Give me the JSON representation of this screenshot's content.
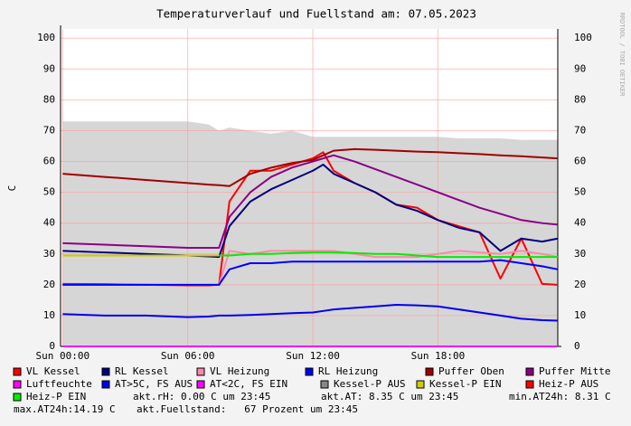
{
  "chart_data": {
    "type": "line",
    "title": "Temperaturverlauf und Fuellstand am: 07.05.2023",
    "y_label": "C",
    "watermark": "RRDTOOL / TOBI OETIKER",
    "x": [
      0,
      2,
      4,
      6,
      7,
      7.5,
      8,
      9,
      10,
      11,
      12,
      12.5,
      13,
      14,
      15,
      16,
      17,
      18,
      19,
      20,
      21,
      22,
      23,
      23.75
    ],
    "xlim": [
      -0.1,
      23.75
    ],
    "xticks": [
      {
        "value": 0,
        "label": "Sun 00:00"
      },
      {
        "value": 6,
        "label": "Sun 06:00"
      },
      {
        "value": 12,
        "label": "Sun 12:00"
      },
      {
        "value": 18,
        "label": "Sun 18:00"
      }
    ],
    "ylim": [
      0,
      103
    ],
    "yticks": [
      0,
      10,
      20,
      30,
      40,
      50,
      60,
      70,
      80,
      90,
      100
    ],
    "grid": true,
    "area": {
      "color": "#d6d6d6",
      "values": [
        73,
        73,
        73,
        73,
        72,
        70,
        71,
        70,
        69,
        70,
        68,
        68,
        68,
        68,
        68,
        68,
        68,
        68,
        67.5,
        67.5,
        67.5,
        67,
        67,
        67
      ]
    },
    "series": [
      {
        "name": "VL Kessel",
        "color": "#ff0000",
        "values": [
          20.3,
          20.2,
          20,
          19.8,
          19.8,
          20,
          47,
          57,
          57,
          59,
          61,
          63,
          57,
          53,
          50,
          46,
          45,
          41,
          39,
          37,
          22,
          35,
          20.3,
          20
        ]
      },
      {
        "name": "RL Kessel",
        "color": "#000080",
        "values": [
          31,
          30.5,
          30,
          29.5,
          29.2,
          29,
          39,
          47,
          51,
          54,
          57,
          59,
          56,
          53,
          50,
          46,
          44,
          41,
          38.5,
          37,
          31,
          35,
          34,
          35
        ]
      },
      {
        "name": "VL Heizung",
        "color": "#ff88aa",
        "values": [
          20,
          20,
          20,
          20,
          20,
          20,
          31,
          30,
          31,
          31,
          31,
          31,
          31,
          30,
          29,
          29,
          29,
          30,
          31,
          30.5,
          30,
          31,
          30,
          29
        ]
      },
      {
        "name": "RL Heizung",
        "color": "#0000ff",
        "values": [
          20,
          20,
          20,
          20,
          20,
          20,
          25,
          27,
          27,
          27.5,
          27.5,
          27.5,
          27.5,
          27.5,
          27.5,
          27.5,
          27.5,
          27.5,
          27.5,
          27.5,
          28,
          27,
          26,
          25
        ]
      },
      {
        "name": "Puffer Oben",
        "color": "#a00000",
        "values": [
          56,
          55,
          54,
          53,
          52.5,
          52.3,
          52,
          56,
          58,
          59.5,
          60.5,
          62,
          63.5,
          64,
          63.8,
          63.5,
          63.2,
          63,
          62.7,
          62.4,
          62,
          61.7,
          61.3,
          61
        ]
      },
      {
        "name": "Puffer Mitte",
        "color": "#880088",
        "values": [
          33.5,
          33,
          32.5,
          32,
          32,
          32,
          42,
          50,
          55,
          58,
          60,
          61,
          62,
          60,
          57.5,
          55,
          52.5,
          50,
          47.5,
          45,
          43,
          41,
          40,
          39.5
        ]
      },
      {
        "name": "Luftfeuchte",
        "color": "#ff00ff",
        "values": [
          0,
          0,
          0,
          0,
          0,
          0,
          0,
          0,
          0,
          0,
          0,
          0,
          0,
          0,
          0,
          0,
          0,
          0,
          0,
          0,
          0,
          0,
          0,
          0
        ]
      },
      {
        "name": "AT>5C, FS AUS",
        "color": "#0000ee",
        "values": [
          10.5,
          10,
          10,
          9.5,
          9.7,
          10,
          10,
          10.2,
          10.5,
          10.8,
          11,
          11.5,
          12,
          12.5,
          13,
          13.5,
          13.3,
          13,
          12,
          11,
          10,
          9,
          8.5,
          8.35
        ]
      },
      {
        "name": "AT<2C, FS EIN",
        "color": "#ff00ff",
        "values": [
          null,
          null,
          null,
          null,
          null,
          null,
          null,
          null,
          null,
          null,
          null,
          null,
          null,
          null,
          null,
          null,
          null,
          null,
          null,
          null,
          null,
          null,
          null,
          null
        ]
      },
      {
        "name": "Kessel-P AUS",
        "color": "#888888",
        "values": [
          null,
          null,
          null,
          null,
          null,
          null,
          null,
          null,
          null,
          null,
          null,
          null,
          null,
          null,
          null,
          null,
          null,
          null,
          null,
          null,
          null,
          null,
          null,
          null
        ]
      },
      {
        "name": "Kessel-P EIN",
        "color": "#cccc00",
        "values": [
          29.5,
          29.5,
          29.5,
          29.5,
          29.5,
          29.5,
          null,
          null,
          null,
          null,
          null,
          null,
          null,
          null,
          null,
          null,
          null,
          null,
          null,
          null,
          null,
          null,
          null,
          null
        ]
      },
      {
        "name": "Heiz-P AUS",
        "color": "#ff0000",
        "values": [
          null,
          null,
          null,
          null,
          null,
          null,
          null,
          null,
          null,
          null,
          null,
          null,
          null,
          null,
          null,
          null,
          null,
          null,
          null,
          null,
          null,
          null,
          null,
          null
        ]
      },
      {
        "name": "Heiz-P EIN",
        "color": "#00ee00",
        "values": [
          null,
          null,
          null,
          null,
          null,
          29.5,
          29.5,
          30,
          30,
          30.3,
          30.5,
          30.5,
          30.5,
          30.3,
          30,
          30,
          29.5,
          29,
          29,
          29,
          29,
          29,
          29,
          29
        ]
      }
    ],
    "annotations": [
      "akt.rH: 0.00 C um 23:45",
      "akt.AT: 8.35 C um 23:45",
      "min.AT24h: 8.31 C",
      "max.AT24h:14.19 C",
      "akt.Fuellstand:   67 Prozent um 23:45"
    ]
  }
}
